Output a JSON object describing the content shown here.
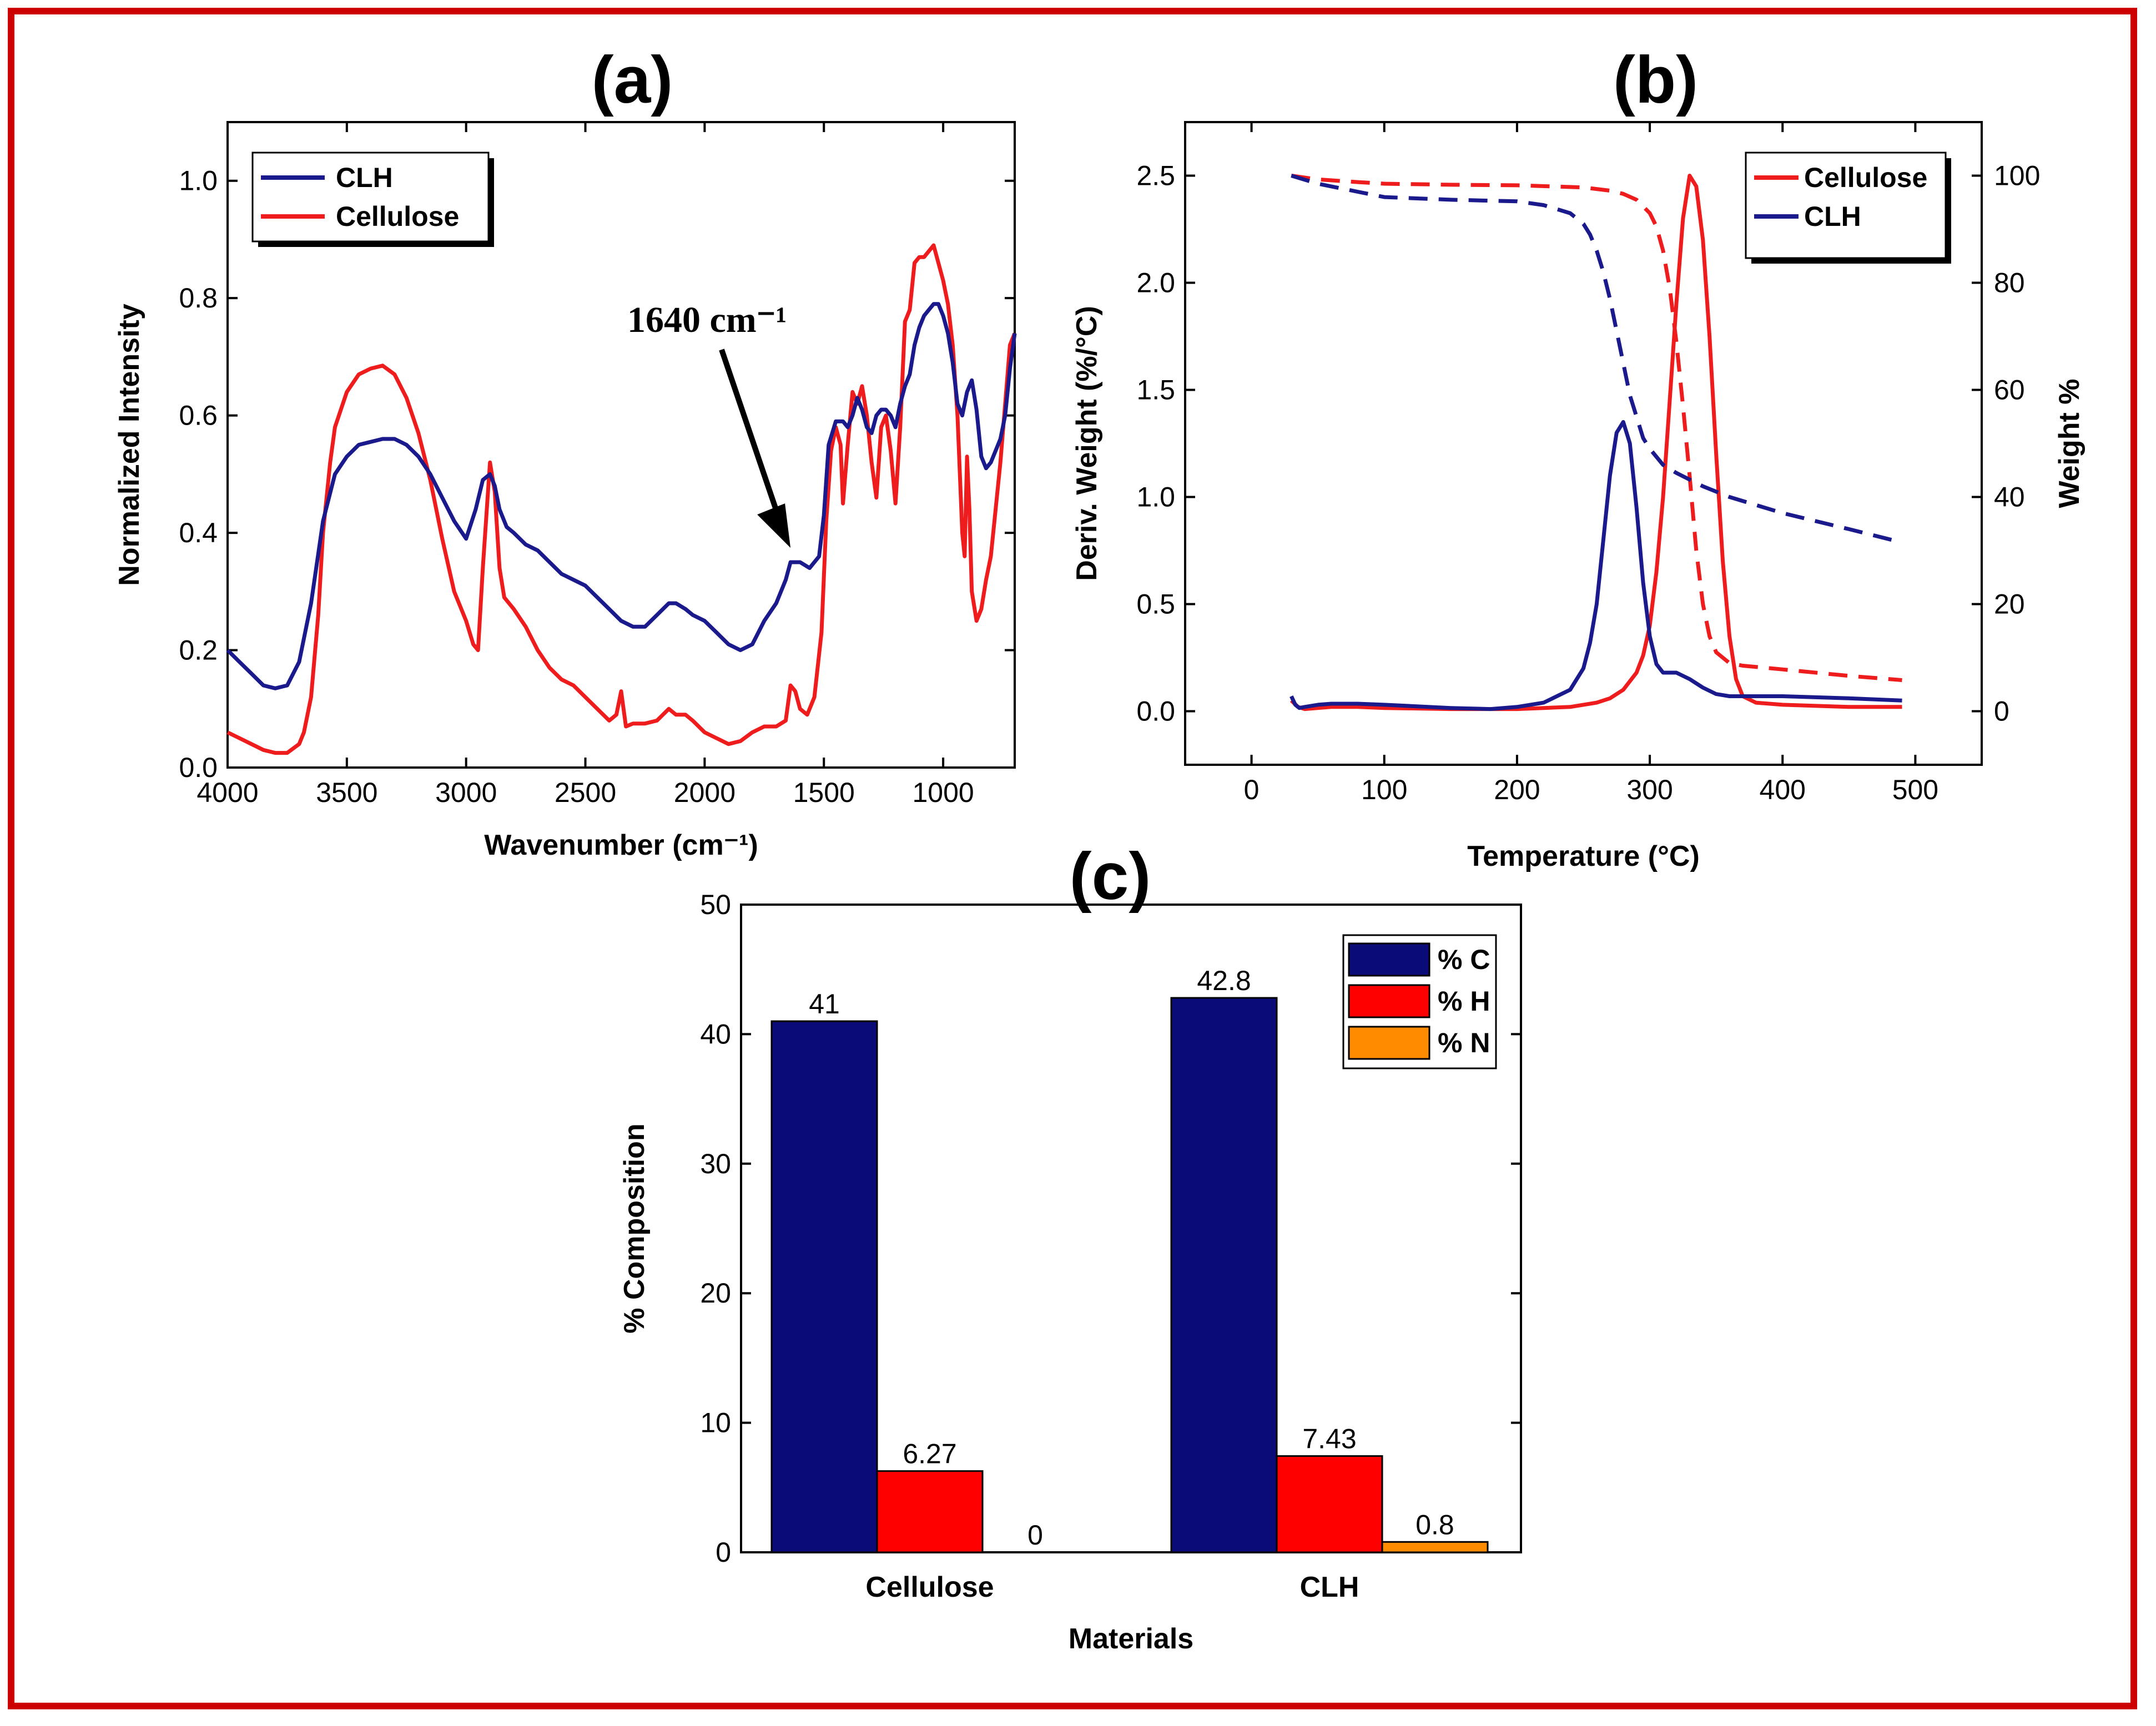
{
  "figure": {
    "frame_color": "#cc0000"
  },
  "chart_data": [
    {
      "id": "a",
      "panel_label": "(a)",
      "type": "line",
      "title": "",
      "xlabel": "Wavenumber (cm⁻¹)",
      "ylabel": "Normalized Intensity",
      "xlim": [
        4000,
        700
      ],
      "ylim": [
        0,
        1.1
      ],
      "xticks": [
        4000,
        3500,
        3000,
        2500,
        2000,
        1500,
        1000
      ],
      "yticks": [
        0.0,
        0.2,
        0.4,
        0.6,
        0.8,
        1.0
      ],
      "legend": [
        "CLH",
        "Cellulose"
      ],
      "legend_position": "top-left",
      "annotation": {
        "text": "1640 cm⁻¹",
        "x": 1640
      },
      "series": [
        {
          "name": "CLH",
          "color": "#1a1a8c",
          "x": [
            4000,
            3950,
            3900,
            3850,
            3800,
            3750,
            3700,
            3650,
            3600,
            3550,
            3500,
            3450,
            3400,
            3350,
            3300,
            3250,
            3200,
            3150,
            3100,
            3050,
            3000,
            2960,
            2930,
            2900,
            2880,
            2860,
            2830,
            2800,
            2750,
            2700,
            2650,
            2600,
            2550,
            2500,
            2450,
            2400,
            2350,
            2300,
            2250,
            2200,
            2150,
            2120,
            2080,
            2050,
            2000,
            1950,
            1900,
            1850,
            1800,
            1750,
            1700,
            1660,
            1640,
            1620,
            1600,
            1560,
            1520,
            1500,
            1480,
            1450,
            1420,
            1400,
            1380,
            1360,
            1340,
            1320,
            1300,
            1280,
            1260,
            1240,
            1220,
            1200,
            1180,
            1160,
            1140,
            1120,
            1100,
            1080,
            1060,
            1040,
            1020,
            1000,
            980,
            960,
            940,
            920,
            900,
            880,
            860,
            840,
            820,
            800,
            780,
            760,
            740,
            720,
            700
          ],
          "values": [
            0.2,
            0.18,
            0.16,
            0.14,
            0.135,
            0.14,
            0.18,
            0.28,
            0.42,
            0.5,
            0.53,
            0.55,
            0.555,
            0.56,
            0.56,
            0.55,
            0.53,
            0.5,
            0.46,
            0.42,
            0.39,
            0.44,
            0.49,
            0.5,
            0.48,
            0.44,
            0.41,
            0.4,
            0.38,
            0.37,
            0.35,
            0.33,
            0.32,
            0.31,
            0.29,
            0.27,
            0.25,
            0.24,
            0.24,
            0.26,
            0.28,
            0.28,
            0.27,
            0.26,
            0.25,
            0.23,
            0.21,
            0.2,
            0.21,
            0.25,
            0.28,
            0.32,
            0.35,
            0.35,
            0.35,
            0.34,
            0.36,
            0.43,
            0.55,
            0.59,
            0.59,
            0.58,
            0.6,
            0.63,
            0.61,
            0.58,
            0.57,
            0.6,
            0.61,
            0.61,
            0.6,
            0.58,
            0.62,
            0.65,
            0.67,
            0.72,
            0.75,
            0.77,
            0.78,
            0.79,
            0.79,
            0.77,
            0.74,
            0.69,
            0.62,
            0.6,
            0.64,
            0.66,
            0.61,
            0.53,
            0.51,
            0.52,
            0.54,
            0.56,
            0.6,
            0.68,
            0.74
          ]
        },
        {
          "name": "Cellulose",
          "color": "#ee1c1c",
          "x": [
            4000,
            3950,
            3900,
            3850,
            3800,
            3750,
            3700,
            3680,
            3650,
            3620,
            3600,
            3570,
            3550,
            3500,
            3450,
            3400,
            3350,
            3300,
            3250,
            3200,
            3150,
            3100,
            3050,
            3000,
            2970,
            2950,
            2930,
            2900,
            2880,
            2860,
            2840,
            2800,
            2750,
            2700,
            2650,
            2600,
            2550,
            2500,
            2450,
            2400,
            2370,
            2350,
            2330,
            2300,
            2250,
            2200,
            2150,
            2120,
            2080,
            2050,
            2000,
            1950,
            1900,
            1850,
            1800,
            1750,
            1700,
            1660,
            1640,
            1620,
            1600,
            1570,
            1540,
            1510,
            1490,
            1470,
            1450,
            1430,
            1420,
            1400,
            1380,
            1360,
            1340,
            1320,
            1300,
            1280,
            1260,
            1240,
            1220,
            1200,
            1180,
            1160,
            1140,
            1120,
            1100,
            1080,
            1060,
            1040,
            1020,
            1000,
            980,
            960,
            940,
            920,
            910,
            900,
            890,
            880,
            860,
            840,
            820,
            800,
            780,
            760,
            740,
            720,
            700
          ],
          "values": [
            0.06,
            0.05,
            0.04,
            0.03,
            0.025,
            0.025,
            0.04,
            0.06,
            0.12,
            0.26,
            0.4,
            0.52,
            0.58,
            0.64,
            0.67,
            0.68,
            0.685,
            0.67,
            0.63,
            0.57,
            0.49,
            0.39,
            0.3,
            0.25,
            0.21,
            0.2,
            0.34,
            0.52,
            0.47,
            0.34,
            0.29,
            0.27,
            0.24,
            0.2,
            0.17,
            0.15,
            0.14,
            0.12,
            0.1,
            0.08,
            0.09,
            0.13,
            0.07,
            0.075,
            0.075,
            0.08,
            0.1,
            0.09,
            0.09,
            0.08,
            0.06,
            0.05,
            0.04,
            0.045,
            0.06,
            0.07,
            0.07,
            0.08,
            0.14,
            0.13,
            0.1,
            0.09,
            0.12,
            0.23,
            0.42,
            0.54,
            0.58,
            0.55,
            0.45,
            0.55,
            0.64,
            0.62,
            0.65,
            0.6,
            0.52,
            0.46,
            0.58,
            0.6,
            0.54,
            0.45,
            0.58,
            0.76,
            0.78,
            0.86,
            0.87,
            0.87,
            0.88,
            0.89,
            0.86,
            0.83,
            0.79,
            0.72,
            0.6,
            0.4,
            0.36,
            0.53,
            0.44,
            0.3,
            0.25,
            0.27,
            0.32,
            0.36,
            0.44,
            0.52,
            0.62,
            0.72,
            0.74
          ]
        }
      ]
    },
    {
      "id": "b",
      "panel_label": "(b)",
      "type": "line",
      "title": "",
      "xlabel": "Temperature (°C)",
      "ylabel": "Deriv. Weight (%/°C)",
      "y2label": "Weight %",
      "xlim": [
        -50,
        550
      ],
      "ylim": [
        -0.25,
        2.75
      ],
      "y2lim": [
        -10,
        110
      ],
      "xticks": [
        0,
        100,
        200,
        300,
        400,
        500
      ],
      "yticks": [
        0.0,
        0.5,
        1.0,
        1.5,
        2.0,
        2.5
      ],
      "y2ticks": [
        0,
        20,
        40,
        60,
        80,
        100
      ],
      "legend": [
        "Cellulose",
        "CLH"
      ],
      "legend_position": "top-right",
      "series": [
        {
          "name": "Cellulose",
          "axis": "left",
          "style": "solid",
          "color": "#ee1c1c",
          "x": [
            30,
            35,
            40,
            60,
            80,
            100,
            150,
            200,
            220,
            240,
            260,
            270,
            280,
            290,
            295,
            300,
            305,
            310,
            315,
            320,
            325,
            330,
            335,
            340,
            345,
            350,
            355,
            360,
            365,
            370,
            380,
            400,
            450,
            490
          ],
          "values": [
            0.05,
            0.02,
            0.01,
            0.02,
            0.02,
            0.015,
            0.01,
            0.01,
            0.015,
            0.02,
            0.04,
            0.06,
            0.1,
            0.18,
            0.26,
            0.4,
            0.65,
            1.0,
            1.45,
            1.9,
            2.3,
            2.5,
            2.45,
            2.2,
            1.75,
            1.2,
            0.7,
            0.35,
            0.15,
            0.07,
            0.04,
            0.03,
            0.02,
            0.02
          ]
        },
        {
          "name": "CLH",
          "axis": "left",
          "style": "solid",
          "color": "#1a1a8c",
          "x": [
            30,
            33,
            36,
            40,
            50,
            60,
            80,
            100,
            150,
            180,
            200,
            220,
            240,
            250,
            255,
            260,
            265,
            270,
            275,
            280,
            285,
            290,
            295,
            300,
            305,
            310,
            320,
            330,
            340,
            350,
            360,
            380,
            400,
            450,
            490
          ],
          "values": [
            0.07,
            0.03,
            0.015,
            0.02,
            0.03,
            0.035,
            0.035,
            0.03,
            0.015,
            0.01,
            0.02,
            0.04,
            0.1,
            0.2,
            0.32,
            0.5,
            0.8,
            1.1,
            1.3,
            1.35,
            1.25,
            0.95,
            0.6,
            0.35,
            0.22,
            0.18,
            0.18,
            0.15,
            0.11,
            0.08,
            0.07,
            0.07,
            0.07,
            0.06,
            0.05
          ]
        },
        {
          "name": "Cellulose",
          "axis": "right",
          "style": "dashed",
          "color": "#ee1c1c",
          "x": [
            30,
            50,
            80,
            100,
            150,
            200,
            250,
            270,
            280,
            290,
            300,
            305,
            310,
            315,
            320,
            325,
            330,
            335,
            340,
            345,
            350,
            360,
            370,
            400,
            450,
            490
          ],
          "values": [
            100,
            99.3,
            98.8,
            98.5,
            98.3,
            98.2,
            97.8,
            97.2,
            96.6,
            95.5,
            93,
            90.5,
            86,
            79,
            69,
            57,
            44,
            30,
            20,
            14,
            11,
            9,
            8.5,
            7.8,
            6.6,
            5.8
          ]
        },
        {
          "name": "CLH",
          "axis": "right",
          "style": "dashed",
          "color": "#1a1a8c",
          "x": [
            30,
            50,
            80,
            100,
            150,
            200,
            220,
            240,
            250,
            255,
            260,
            265,
            270,
            275,
            280,
            285,
            290,
            295,
            300,
            310,
            320,
            340,
            360,
            400,
            450,
            490
          ],
          "values": [
            100,
            98.5,
            97,
            96,
            95.5,
            95.2,
            94.5,
            93,
            91,
            89,
            86,
            82,
            77,
            71,
            65,
            59,
            55,
            51,
            49,
            46,
            44.5,
            42,
            40,
            37,
            34,
            31.5
          ]
        }
      ]
    },
    {
      "id": "c",
      "panel_label": "(c)",
      "type": "bar",
      "title": "",
      "xlabel": "Materials",
      "ylabel": "% Composition",
      "ylim": [
        0,
        50
      ],
      "yticks": [
        0,
        10,
        20,
        30,
        40,
        50
      ],
      "categories": [
        "Cellulose",
        "CLH"
      ],
      "legend_position": "top-right",
      "series": [
        {
          "name": "% C",
          "color": "#0a0a78",
          "values": [
            41,
            42.8
          ],
          "labels": [
            "41",
            "42.8"
          ]
        },
        {
          "name": "% H",
          "color": "#ff0000",
          "values": [
            6.27,
            7.43
          ],
          "labels": [
            "6.27",
            "7.43"
          ]
        },
        {
          "name": "% N",
          "color": "#ff8c00",
          "values": [
            0,
            0.8
          ],
          "labels": [
            "0",
            "0.8"
          ]
        }
      ]
    }
  ]
}
